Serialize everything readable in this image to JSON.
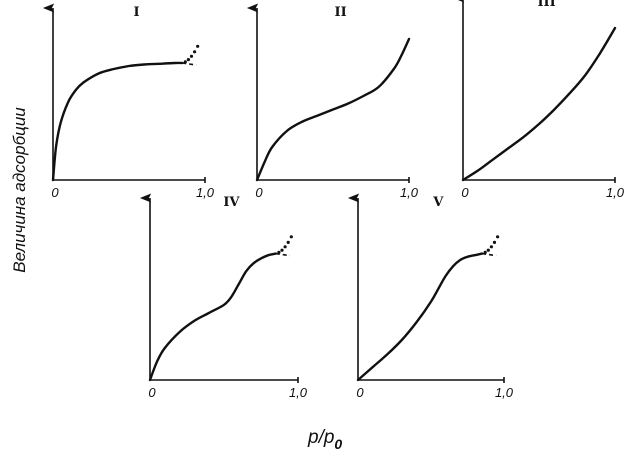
{
  "y_axis_label": "Величина адсорбции",
  "x_axis_label": "p/p",
  "x_axis_label_sub": "0",
  "chart_data": [
    {
      "type": "line",
      "title": "I",
      "x_ticks": [
        "0",
        "1,0"
      ],
      "xlim": [
        0,
        1.0
      ],
      "ylim": [
        0,
        1.0
      ],
      "series": [
        {
          "x": [
            0,
            0.02,
            0.05,
            0.1,
            0.15,
            0.2,
            0.3,
            0.4,
            0.5,
            0.6,
            0.7,
            0.8,
            0.85
          ],
          "y": [
            0,
            0.22,
            0.38,
            0.52,
            0.6,
            0.65,
            0.71,
            0.74,
            0.76,
            0.77,
            0.775,
            0.78,
            0.78
          ]
        }
      ],
      "branches": {
        "upper": true,
        "lower_dashed": true
      }
    },
    {
      "type": "line",
      "title": "II",
      "x_ticks": [
        "0",
        "1,0"
      ],
      "xlim": [
        0,
        1.0
      ],
      "ylim": [
        0,
        1.0
      ],
      "series": [
        {
          "x": [
            0,
            0.05,
            0.1,
            0.2,
            0.3,
            0.4,
            0.5,
            0.6,
            0.7,
            0.8,
            0.9,
            0.95,
            1.0
          ],
          "y": [
            0,
            0.12,
            0.22,
            0.33,
            0.39,
            0.43,
            0.47,
            0.51,
            0.56,
            0.62,
            0.74,
            0.83,
            0.94
          ]
        }
      ],
      "branches": {
        "upper": false,
        "lower_dashed": false
      }
    },
    {
      "type": "line",
      "title": "III",
      "x_ticks": [
        "0",
        "1,0"
      ],
      "xlim": [
        0,
        1.0
      ],
      "ylim": [
        0,
        1.0
      ],
      "series": [
        {
          "x": [
            0,
            0.1,
            0.2,
            0.3,
            0.4,
            0.5,
            0.6,
            0.7,
            0.8,
            0.9,
            1.0
          ],
          "y": [
            0,
            0.06,
            0.13,
            0.2,
            0.27,
            0.35,
            0.44,
            0.54,
            0.65,
            0.79,
            0.95
          ]
        }
      ],
      "branches": {
        "upper": false,
        "lower_dashed": false
      }
    },
    {
      "type": "line",
      "title": "IV",
      "x_ticks": [
        "0",
        "1,0"
      ],
      "xlim": [
        0,
        1.0
      ],
      "ylim": [
        0,
        1.0
      ],
      "series": [
        {
          "x": [
            0,
            0.05,
            0.1,
            0.2,
            0.3,
            0.4,
            0.5,
            0.55,
            0.6,
            0.65,
            0.7,
            0.75,
            0.8,
            0.85
          ],
          "y": [
            0,
            0.12,
            0.2,
            0.3,
            0.37,
            0.42,
            0.47,
            0.52,
            0.6,
            0.68,
            0.73,
            0.76,
            0.78,
            0.79
          ]
        }
      ],
      "branches": {
        "upper": true,
        "lower_dashed": true
      }
    },
    {
      "type": "line",
      "title": "V",
      "x_ticks": [
        "0",
        "1,0"
      ],
      "xlim": [
        0,
        1.0
      ],
      "ylim": [
        0,
        1.0
      ],
      "series": [
        {
          "x": [
            0,
            0.1,
            0.2,
            0.3,
            0.4,
            0.5,
            0.55,
            0.6,
            0.65,
            0.7,
            0.75,
            0.8,
            0.85
          ],
          "y": [
            0,
            0.08,
            0.16,
            0.25,
            0.36,
            0.49,
            0.57,
            0.65,
            0.71,
            0.75,
            0.77,
            0.78,
            0.79
          ]
        }
      ],
      "branches": {
        "upper": true,
        "lower_dashed": true
      }
    }
  ]
}
